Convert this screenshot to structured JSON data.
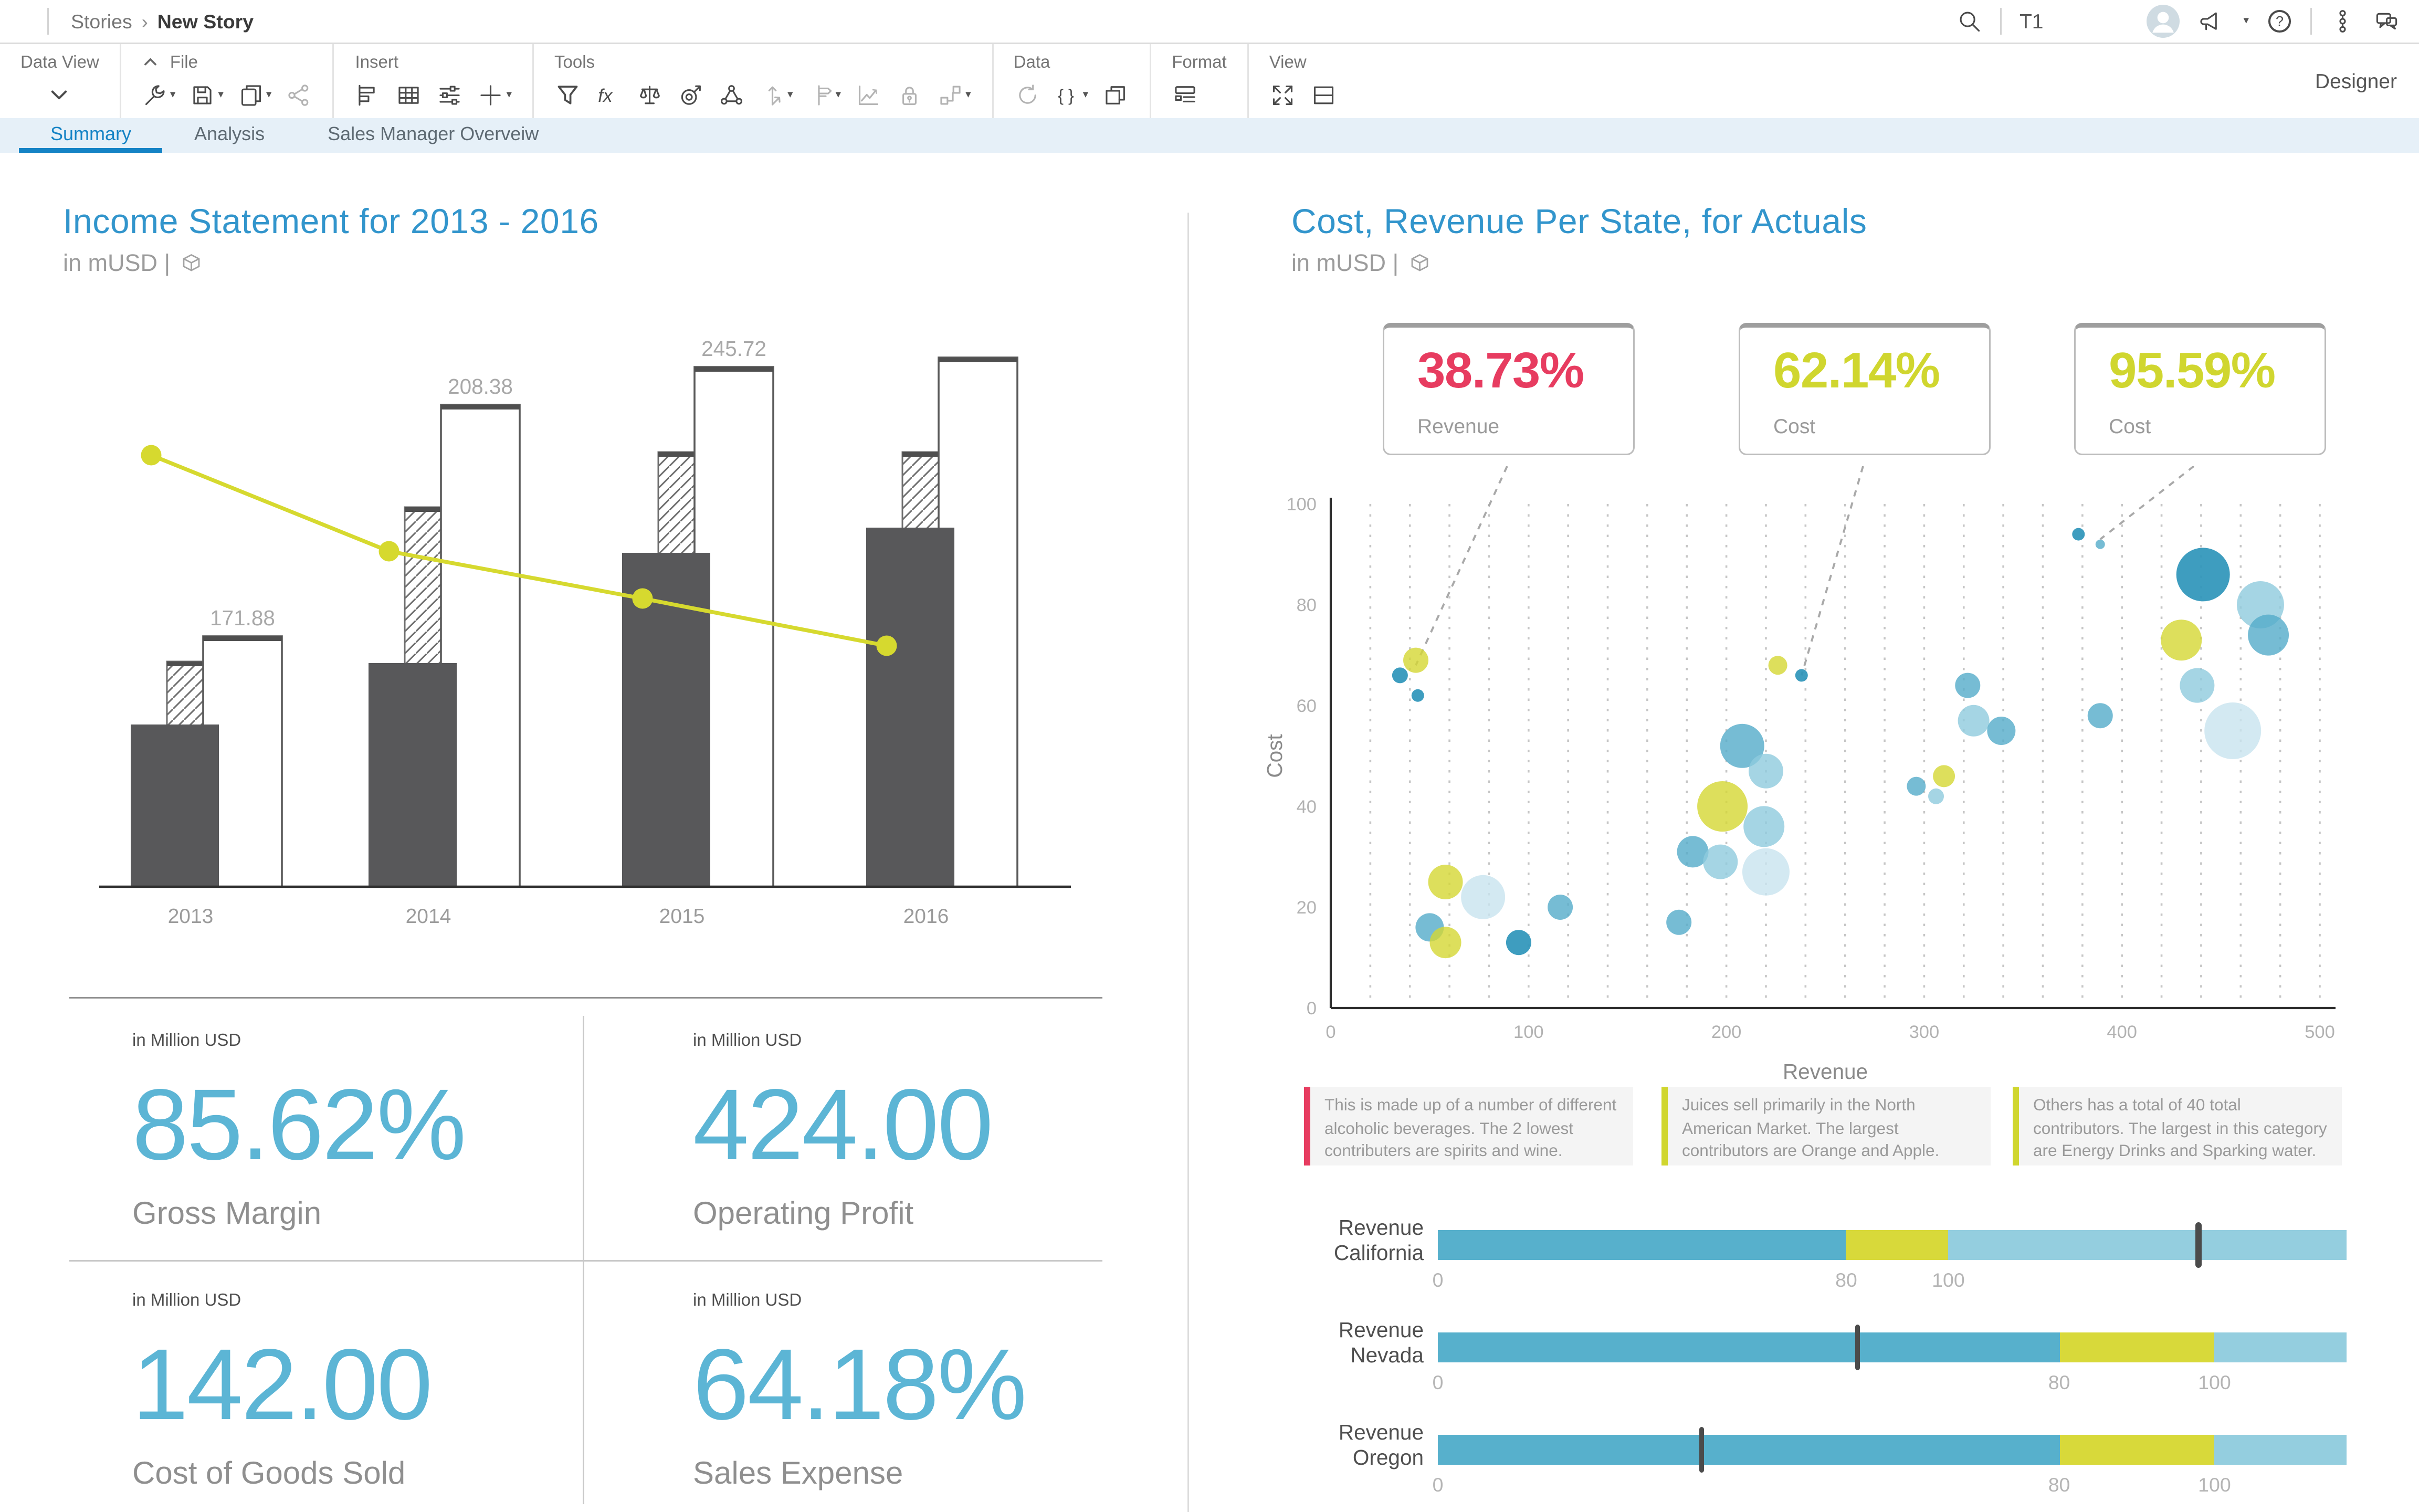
{
  "window": {
    "breadcrumb": {
      "root": "Stories",
      "separator": "›",
      "current": "New Story"
    },
    "tenant": "T1",
    "mode_label": "Designer"
  },
  "toolbar": {
    "sections": [
      {
        "label": "Data View",
        "centered": true,
        "icons": [
          {
            "name": "chevron-down"
          }
        ]
      },
      {
        "label": "File",
        "collapse": true,
        "icons": [
          {
            "name": "wrench",
            "caret": true
          },
          {
            "name": "save",
            "caret": true
          },
          {
            "name": "copy",
            "caret": true
          },
          {
            "name": "share",
            "muted": true
          }
        ]
      },
      {
        "label": "Insert",
        "icons": [
          {
            "name": "chart"
          },
          {
            "name": "table"
          },
          {
            "name": "sliders"
          },
          {
            "name": "plus",
            "caret": true
          }
        ]
      },
      {
        "label": "Tools",
        "icons": [
          {
            "name": "filter"
          },
          {
            "name": "formula"
          },
          {
            "name": "scales"
          },
          {
            "name": "target"
          },
          {
            "name": "hierarchy"
          },
          {
            "name": "axes",
            "caret": true,
            "muted": true
          },
          {
            "name": "signpost",
            "caret": true,
            "muted": true
          },
          {
            "name": "trend",
            "muted": true
          },
          {
            "name": "lock",
            "muted": true
          },
          {
            "name": "flow",
            "caret": true,
            "muted": true
          }
        ]
      },
      {
        "label": "Data",
        "icons": [
          {
            "name": "refresh",
            "muted": true
          },
          {
            "name": "braces",
            "caret": true
          },
          {
            "name": "duplicate"
          }
        ]
      },
      {
        "label": "Format",
        "icons": [
          {
            "name": "layout"
          }
        ]
      },
      {
        "label": "View",
        "icons": [
          {
            "name": "expand"
          },
          {
            "name": "split"
          }
        ]
      }
    ]
  },
  "tabs": [
    {
      "label": "Summary",
      "active": true
    },
    {
      "label": "Analysis",
      "active": false
    },
    {
      "label": "Sales Manager Overveiw",
      "active": false
    }
  ],
  "left_panel": {
    "title": "Income Statement for 2013 - 2016",
    "subtitle": "in mUSD |",
    "kpis": [
      {
        "caption": "in Million USD",
        "value": "85.62%",
        "label": "Gross Margin"
      },
      {
        "caption": "in Million USD",
        "value": "424.00",
        "label": "Operating Profit"
      },
      {
        "caption": "in Million USD",
        "value": "142.00",
        "label": "Cost of Goods Sold"
      },
      {
        "caption": "in Million USD",
        "value": "64.18%",
        "label": "Sales Expense"
      }
    ]
  },
  "right_panel": {
    "title": "Cost, Revenue Per State, for Actuals",
    "subtitle": "in mUSD |",
    "callouts": [
      {
        "value": "38.73%",
        "label": "Revenue",
        "color": "#e73c60"
      },
      {
        "value": "62.14%",
        "label": "Cost",
        "color": "#d0d62f"
      },
      {
        "value": "95.59%",
        "label": "Cost",
        "color": "#d0d62f"
      }
    ],
    "annotations": [
      {
        "color": "#e73c60",
        "text": "This is made up of a number of different alcoholic beverages. The 2 lowest contributers are spirits and wine."
      },
      {
        "color": "#d0d62f",
        "text": "Juices sell primarily in the North American Market. The largest contributors are Orange and Apple."
      },
      {
        "color": "#d0d62f",
        "text": "Others has a total of 40 total contributors. The largest in this category are Energy Drinks and Sparking water."
      }
    ]
  },
  "chart_data": [
    {
      "type": "combo-bar-line",
      "title": "Income Statement for 2013 - 2016",
      "subtitle": "in mUSD",
      "categories": [
        "2013",
        "2014",
        "2015",
        "2016"
      ],
      "series": [
        {
          "name": "solid-bar",
          "style": "solid",
          "color": "#58585a",
          "values": [
            93,
            125,
            188,
            200
          ]
        },
        {
          "name": "hatched-bar",
          "style": "hatched",
          "color": "#6e6e6e",
          "values": [
            130,
            195,
            220,
            220
          ]
        },
        {
          "name": "outline-bar",
          "style": "outline",
          "color": "#5a5a5a",
          "values": [
            171.88,
            208.38,
            245.72,
            250
          ],
          "data_labels": [
            "171.88",
            "208.38",
            "245.72",
            ""
          ]
        },
        {
          "name": "trend-line",
          "style": "line",
          "color": "#d6d92f",
          "values": [
            210,
            160,
            140,
            118
          ]
        }
      ],
      "ylim": [
        0,
        260
      ],
      "grid": false,
      "legend": "none",
      "render": {
        "centers": [
          81,
          232,
          393,
          548
        ],
        "baseline": 358,
        "solid_h": [
          103,
          142,
          212,
          228
        ],
        "hatched_h": [
          143,
          241,
          276,
          276
        ],
        "outline_h": [
          159,
          306,
          330,
          336
        ],
        "line_y": [
          84,
          145,
          175,
          205
        ],
        "line_x": [
          56,
          207,
          368,
          523
        ]
      }
    },
    {
      "type": "bubble",
      "title": "Cost, Revenue Per State, for Actuals",
      "xlabel": "Revenue",
      "ylabel": "Cost",
      "xlim": [
        0,
        500
      ],
      "ylim": [
        0,
        100
      ],
      "xticks": [
        0,
        100,
        200,
        300,
        400,
        500
      ],
      "yticks": [
        0,
        20,
        40,
        60,
        80,
        100
      ],
      "grid": "dotted-vertical",
      "palette": {
        "deep": "#2e95ba",
        "mid": "#54abc9",
        "light": "#8fcadd",
        "pale": "#c8e3ef",
        "yellow": "#d4d733"
      },
      "bubbles": [
        [
          43,
          69,
          8,
          "yellow"
        ],
        [
          35,
          66,
          5,
          "deep"
        ],
        [
          44,
          62,
          4,
          "deep"
        ],
        [
          58,
          25,
          11,
          "yellow"
        ],
        [
          77,
          22,
          14,
          "pale"
        ],
        [
          50,
          16,
          9,
          "mid"
        ],
        [
          58,
          13,
          10,
          "yellow"
        ],
        [
          95,
          13,
          8,
          "deep"
        ],
        [
          116,
          20,
          8,
          "mid"
        ],
        [
          176,
          17,
          8,
          "mid"
        ],
        [
          208,
          52,
          14,
          "mid"
        ],
        [
          220,
          47,
          11,
          "light"
        ],
        [
          198,
          40,
          16,
          "yellow"
        ],
        [
          219,
          36,
          13,
          "light"
        ],
        [
          183,
          31,
          10,
          "mid"
        ],
        [
          197,
          29,
          11,
          "light"
        ],
        [
          220,
          27,
          15,
          "pale"
        ],
        [
          226,
          68,
          6,
          "yellow"
        ],
        [
          238,
          66,
          4,
          "deep"
        ],
        [
          322,
          64,
          8,
          "mid"
        ],
        [
          325,
          57,
          10,
          "light"
        ],
        [
          339,
          55,
          9,
          "mid"
        ],
        [
          310,
          46,
          7,
          "yellow"
        ],
        [
          296,
          44,
          6,
          "mid"
        ],
        [
          306,
          42,
          5,
          "light"
        ],
        [
          378,
          94,
          4,
          "deep"
        ],
        [
          389,
          92,
          3,
          "mid"
        ],
        [
          441,
          86,
          17,
          "deep"
        ],
        [
          470,
          80,
          15,
          "light"
        ],
        [
          430,
          73,
          13,
          "yellow"
        ],
        [
          474,
          74,
          13,
          "mid"
        ],
        [
          389,
          58,
          8,
          "mid"
        ],
        [
          438,
          64,
          11,
          "light"
        ],
        [
          456,
          55,
          18,
          "pale"
        ]
      ],
      "callout_targets": [
        [
          43,
          68
        ],
        [
          238,
          66
        ],
        [
          389,
          93
        ]
      ]
    },
    {
      "type": "bullet",
      "palette": {
        "mid": "#57b0cc",
        "yellow": "#d8d93a",
        "light": "#94cedf",
        "marker": "#4b4b4b"
      },
      "rows": [
        {
          "label": [
            "Revenue",
            "California"
          ],
          "max": 178,
          "segments": [
            [
              0,
              80,
              "mid"
            ],
            [
              80,
              100,
              "yellow"
            ],
            [
              100,
              178,
              "light"
            ]
          ],
          "marker": 149,
          "ticks": [
            0,
            80,
            100
          ]
        },
        {
          "label": [
            "Revenue",
            "Nevada"
          ],
          "max": 117,
          "segments": [
            [
              0,
              80,
              "mid"
            ],
            [
              80,
              100,
              "yellow"
            ],
            [
              100,
              117,
              "light"
            ]
          ],
          "marker": 54,
          "ticks": [
            0,
            80,
            100
          ]
        },
        {
          "label": [
            "Revenue",
            "Oregon"
          ],
          "max": 117,
          "segments": [
            [
              0,
              80,
              "mid"
            ],
            [
              80,
              100,
              "yellow"
            ],
            [
              100,
              117,
              "light"
            ]
          ],
          "marker": 34,
          "ticks": [
            0,
            80,
            100
          ]
        }
      ]
    }
  ],
  "colors": {
    "title_blue": "#3295cc",
    "tab_blue": "#1583c5",
    "kpi_teal": "#5cb5d5",
    "bar_grey": "#58585a",
    "line_yellow": "#d6d92f",
    "pink": "#e73c60",
    "yellow": "#d0d62f"
  }
}
